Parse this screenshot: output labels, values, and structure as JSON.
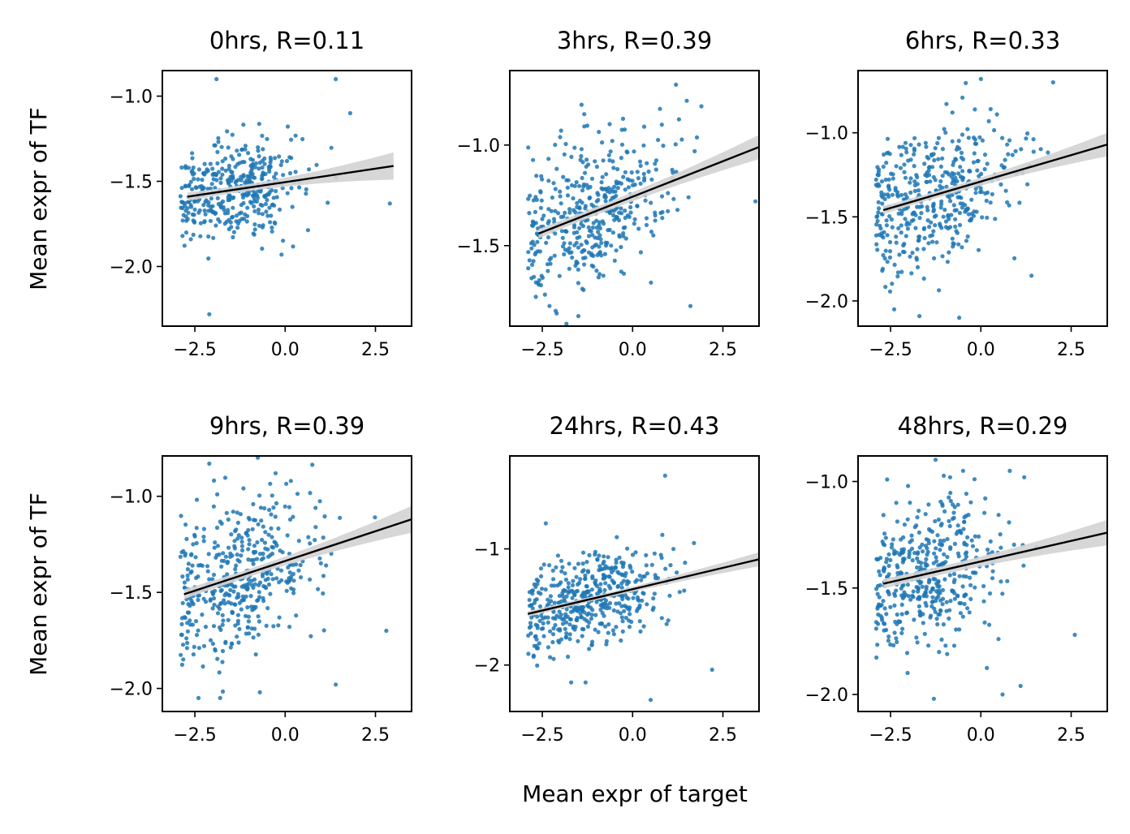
{
  "figure": {
    "xlabel": "Mean expr of target",
    "ylabel": "Mean expr of TF"
  },
  "colors": {
    "points": "#1f77b4",
    "line": "#000000",
    "band": "#d3d3d3"
  },
  "chart_data": [
    {
      "type": "scatter",
      "title": "0hrs, R=0.11",
      "xlim": [
        -3.4,
        3.5
      ],
      "ylim": [
        -2.35,
        -0.85
      ],
      "xticks": [
        -2.5,
        0.0,
        2.5
      ],
      "xtick_labels": [
        "−2.5",
        "0.0",
        "2.5"
      ],
      "yticks": [
        -2.0,
        -1.5,
        -1.0
      ],
      "ytick_labels": [
        "−2.0",
        "−1.5",
        "−1.0"
      ],
      "regression": {
        "x": [
          -2.7,
          3.0
        ],
        "y": [
          -1.59,
          -1.41
        ],
        "band_halfwidth": [
          0.02,
          0.08
        ]
      },
      "n_points": 400,
      "x_center": -1.5,
      "x_spread": 1.0,
      "y_center": -1.55,
      "y_spread": 0.14,
      "outliers": [
        [
          -1.9,
          -0.9
        ],
        [
          1.4,
          -0.9
        ],
        [
          -2.1,
          -2.28
        ],
        [
          2.9,
          -1.63
        ],
        [
          -0.1,
          -1.93
        ],
        [
          1.8,
          -1.1
        ]
      ]
    },
    {
      "type": "scatter",
      "title": "3hrs, R=0.39",
      "xlim": [
        -3.4,
        3.5
      ],
      "ylim": [
        -1.9,
        -0.63
      ],
      "xticks": [
        -2.5,
        0.0,
        2.5
      ],
      "xtick_labels": [
        "−2.5",
        "0.0",
        "2.5"
      ],
      "yticks": [
        -1.5,
        -1.0
      ],
      "ytick_labels": [
        "−1.5",
        "−1.0"
      ],
      "regression": {
        "x": [
          -2.6,
          3.5
        ],
        "y": [
          -1.44,
          -1.01
        ],
        "band_halfwidth": [
          0.02,
          0.06
        ]
      },
      "n_points": 420,
      "x_center": -1.2,
      "x_spread": 1.1,
      "y_center": -1.33,
      "y_spread": 0.17,
      "outliers": [
        [
          1.2,
          -0.7
        ],
        [
          -1.5,
          -1.85
        ],
        [
          1.6,
          -1.8
        ],
        [
          3.4,
          -1.28
        ],
        [
          1.5,
          -0.78
        ],
        [
          -2.3,
          -1.8
        ]
      ]
    },
    {
      "type": "scatter",
      "title": "6hrs, R=0.33",
      "xlim": [
        -3.4,
        3.5
      ],
      "ylim": [
        -2.15,
        -0.63
      ],
      "xticks": [
        -2.5,
        0.0,
        2.5
      ],
      "xtick_labels": [
        "−2.5",
        "0.0",
        "2.5"
      ],
      "yticks": [
        -2.0,
        -1.5,
        -1.0
      ],
      "ytick_labels": [
        "−2.0",
        "−1.5",
        "−1.0"
      ],
      "regression": {
        "x": [
          -2.7,
          3.5
        ],
        "y": [
          -1.46,
          -1.07
        ],
        "band_halfwidth": [
          0.02,
          0.07
        ]
      },
      "n_points": 430,
      "x_center": -1.3,
      "x_spread": 1.1,
      "y_center": -1.33,
      "y_spread": 0.2,
      "outliers": [
        [
          -0.6,
          -2.1
        ],
        [
          -1.7,
          -2.09
        ],
        [
          -2.4,
          -2.05
        ],
        [
          0.0,
          -0.68
        ],
        [
          1.4,
          -1.85
        ],
        [
          2.0,
          -0.7
        ]
      ]
    },
    {
      "type": "scatter",
      "title": "9hrs, R=0.39",
      "xlim": [
        -3.4,
        3.5
      ],
      "ylim": [
        -2.12,
        -0.79
      ],
      "xticks": [
        -2.5,
        0.0,
        2.5
      ],
      "xtick_labels": [
        "−2.5",
        "0.0",
        "2.5"
      ],
      "yticks": [
        -2.0,
        -1.5,
        -1.0
      ],
      "ytick_labels": [
        "−2.0",
        "−1.5",
        "−1.0"
      ],
      "regression": {
        "x": [
          -2.8,
          3.5
        ],
        "y": [
          -1.51,
          -1.12
        ],
        "band_halfwidth": [
          0.02,
          0.07
        ]
      },
      "n_points": 430,
      "x_center": -1.2,
      "x_spread": 1.1,
      "y_center": -1.4,
      "y_spread": 0.2,
      "outliers": [
        [
          -2.1,
          -0.83
        ],
        [
          -2.4,
          -2.05
        ],
        [
          -1.8,
          -2.05
        ],
        [
          -0.7,
          -2.02
        ],
        [
          2.8,
          -1.7
        ],
        [
          1.4,
          -1.98
        ]
      ]
    },
    {
      "type": "scatter",
      "title": "24hrs, R=0.43",
      "xlim": [
        -3.4,
        3.5
      ],
      "ylim": [
        -2.4,
        -0.2
      ],
      "xticks": [
        -2.5,
        0.0,
        2.5
      ],
      "xtick_labels": [
        "−2.5",
        "0.0",
        "2.5"
      ],
      "yticks": [
        -2,
        -1
      ],
      "ytick_labels": [
        "−2",
        "−1"
      ],
      "regression": {
        "x": [
          -2.9,
          3.5
        ],
        "y": [
          -1.56,
          -1.09
        ],
        "band_halfwidth": [
          0.02,
          0.06
        ]
      },
      "n_points": 460,
      "x_center": -1.3,
      "x_spread": 1.0,
      "y_center": -1.48,
      "y_spread": 0.19,
      "outliers": [
        [
          0.9,
          -0.37
        ],
        [
          0.5,
          -2.3
        ],
        [
          -1.3,
          -2.15
        ],
        [
          2.2,
          -2.04
        ],
        [
          -1.7,
          -2.15
        ],
        [
          1.7,
          -0.95
        ]
      ]
    },
    {
      "type": "scatter",
      "title": "48hrs, R=0.29",
      "xlim": [
        -3.4,
        3.5
      ],
      "ylim": [
        -2.08,
        -0.88
      ],
      "xticks": [
        -2.5,
        0.0,
        2.5
      ],
      "xtick_labels": [
        "−2.5",
        "0.0",
        "2.5"
      ],
      "yticks": [
        -2.0,
        -1.5,
        -1.0
      ],
      "ytick_labels": [
        "−2.0",
        "−1.5",
        "−1.0"
      ],
      "regression": {
        "x": [
          -2.7,
          3.5
        ],
        "y": [
          -1.48,
          -1.24
        ],
        "band_halfwidth": [
          0.02,
          0.06
        ]
      },
      "n_points": 430,
      "x_center": -1.4,
      "x_spread": 1.0,
      "y_center": -1.45,
      "y_spread": 0.17,
      "outliers": [
        [
          0.8,
          -0.95
        ],
        [
          1.2,
          -0.98
        ],
        [
          -1.3,
          -2.02
        ],
        [
          0.6,
          -2.0
        ],
        [
          1.1,
          -1.96
        ],
        [
          2.6,
          -1.72
        ]
      ]
    }
  ]
}
